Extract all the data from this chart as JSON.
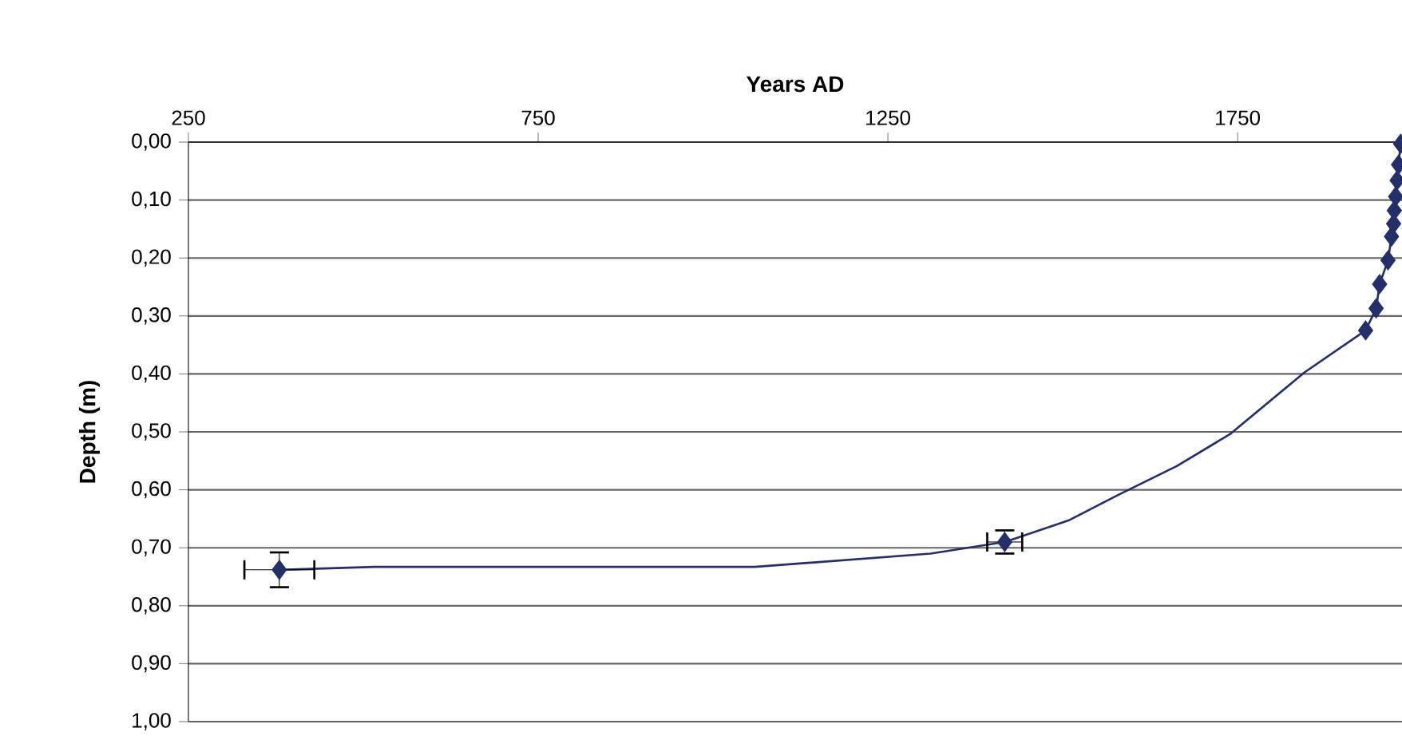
{
  "chart_data": {
    "type": "line",
    "xlabel": "Years AD",
    "ylabel": "Depth (m)",
    "xlim": [
      250,
      1985
    ],
    "xticks": [
      250,
      750,
      1250,
      1750
    ],
    "ylim": [
      1.0,
      0.0
    ],
    "yticks": [
      {
        "value": 0.0,
        "label": "0,00"
      },
      {
        "value": 0.1,
        "label": "0,10"
      },
      {
        "value": 0.2,
        "label": "0,20"
      },
      {
        "value": 0.3,
        "label": "0,30"
      },
      {
        "value": 0.4,
        "label": "0,40"
      },
      {
        "value": 0.5,
        "label": "0,50"
      },
      {
        "value": 0.6,
        "label": "0,60"
      },
      {
        "value": 0.7,
        "label": "0,70"
      },
      {
        "value": 0.8,
        "label": "0,80"
      },
      {
        "value": 0.9,
        "label": "0,90"
      },
      {
        "value": 1.0,
        "label": "1,00"
      }
    ],
    "grid": "y",
    "series": [
      {
        "color": "#232f66",
        "marker": "none",
        "line_style": "solid",
        "x": [
          380,
          516,
          1060,
          1311,
          1417,
          1508,
          1579,
          1663,
          1739,
          1846,
          1933,
          1948,
          1953,
          1965,
          1970,
          1973,
          1974,
          1976,
          1978,
          1980,
          1983
        ],
        "values": [
          0.738,
          0.733,
          0.733,
          0.71,
          0.69,
          0.653,
          0.609,
          0.559,
          0.504,
          0.397,
          0.325,
          0.287,
          0.245,
          0.204,
          0.163,
          0.141,
          0.118,
          0.094,
          0.066,
          0.039,
          0.003
        ]
      },
      {
        "type": "scatter",
        "color": "#232f66",
        "marker": "diamond",
        "x": [
          380,
          1417,
          1933,
          1948,
          1953,
          1965,
          1970,
          1973,
          1974,
          1976,
          1978,
          1980,
          1983
        ],
        "values": [
          0.738,
          0.69,
          0.325,
          0.287,
          0.245,
          0.204,
          0.163,
          0.141,
          0.118,
          0.094,
          0.066,
          0.039,
          0.003
        ],
        "xerrors": [
          50,
          25,
          null,
          null,
          null,
          null,
          null,
          null,
          null,
          null,
          null,
          null,
          null
        ],
        "errors": [
          0.03,
          0.02,
          null,
          null,
          null,
          null,
          null,
          null,
          null,
          null,
          null,
          null,
          null
        ]
      }
    ]
  }
}
